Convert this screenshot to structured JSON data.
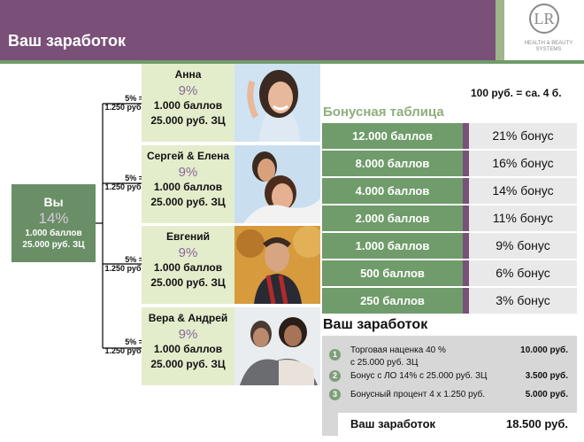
{
  "header": {
    "title": "Ваш заработок"
  },
  "logo": {
    "mark": "LR",
    "line1": "HEALTH & BEAUTY",
    "line2": "SYSTEMS"
  },
  "you": {
    "name": "Вы",
    "percent": "14%",
    "points": "1.000 баллов",
    "volume": "25.000 руб. ЗЦ"
  },
  "branches": [
    {
      "label": "5% =\n1.250 руб.",
      "name": "Анна",
      "percent": "9%",
      "points": "1.000 баллов",
      "volume": "25.000 руб. ЗЦ"
    },
    {
      "label": "5% =\n1.250 руб.",
      "name": "Сергей & Елена",
      "percent": "9%",
      "points": "1.000 баллов",
      "volume": "25.000 руб. ЗЦ"
    },
    {
      "label": "5% =\n1.250 руб.",
      "name": "Евгений",
      "percent": "9%",
      "points": "1.000 баллов",
      "volume": "25.000 руб. ЗЦ"
    },
    {
      "label": "5% =\n1.250 руб.",
      "name": "Вера & Андрей",
      "percent": "9%",
      "points": "1.000 баллов",
      "volume": "25.000 руб. ЗЦ"
    }
  ],
  "rate_note": "100 руб. = са. 4 б.",
  "bonus_table": {
    "title": "Бонусная таблица",
    "rows": [
      {
        "points": "12.000 баллов",
        "bonus": "21% бонус"
      },
      {
        "points": "8.000 баллов",
        "bonus": "16% бонус"
      },
      {
        "points": "4.000 баллов",
        "bonus": "14% бонус"
      },
      {
        "points": "2.000 баллов",
        "bonus": "11% бонус"
      },
      {
        "points": "1.000 баллов",
        "bonus": "9% бонус"
      },
      {
        "points": "500 баллов",
        "bonus": "6% бонус"
      },
      {
        "points": "250 баллов",
        "bonus": "3% бонус"
      }
    ]
  },
  "earnings": {
    "title": "Ваш заработок",
    "items": [
      {
        "num": "1",
        "text": "Торговая наценка 40 %",
        "text2": "с 25.000 руб. ЗЦ",
        "value": "10.000 руб."
      },
      {
        "num": "2",
        "text": "Бонус с ЛО 14% с 25.000 руб. ЗЦ",
        "value": "3.500 руб."
      },
      {
        "num": "3",
        "text": "Бонусный процент 4 x 1.250 руб.",
        "value": "5.000 руб."
      }
    ],
    "total_label": "Ваш заработок",
    "total_value": "18.500 руб."
  },
  "colors": {
    "header": "#7a4f78",
    "green": "#6f9c6a",
    "card": "#e3edcc",
    "accent_purple": "#8a6a96"
  }
}
